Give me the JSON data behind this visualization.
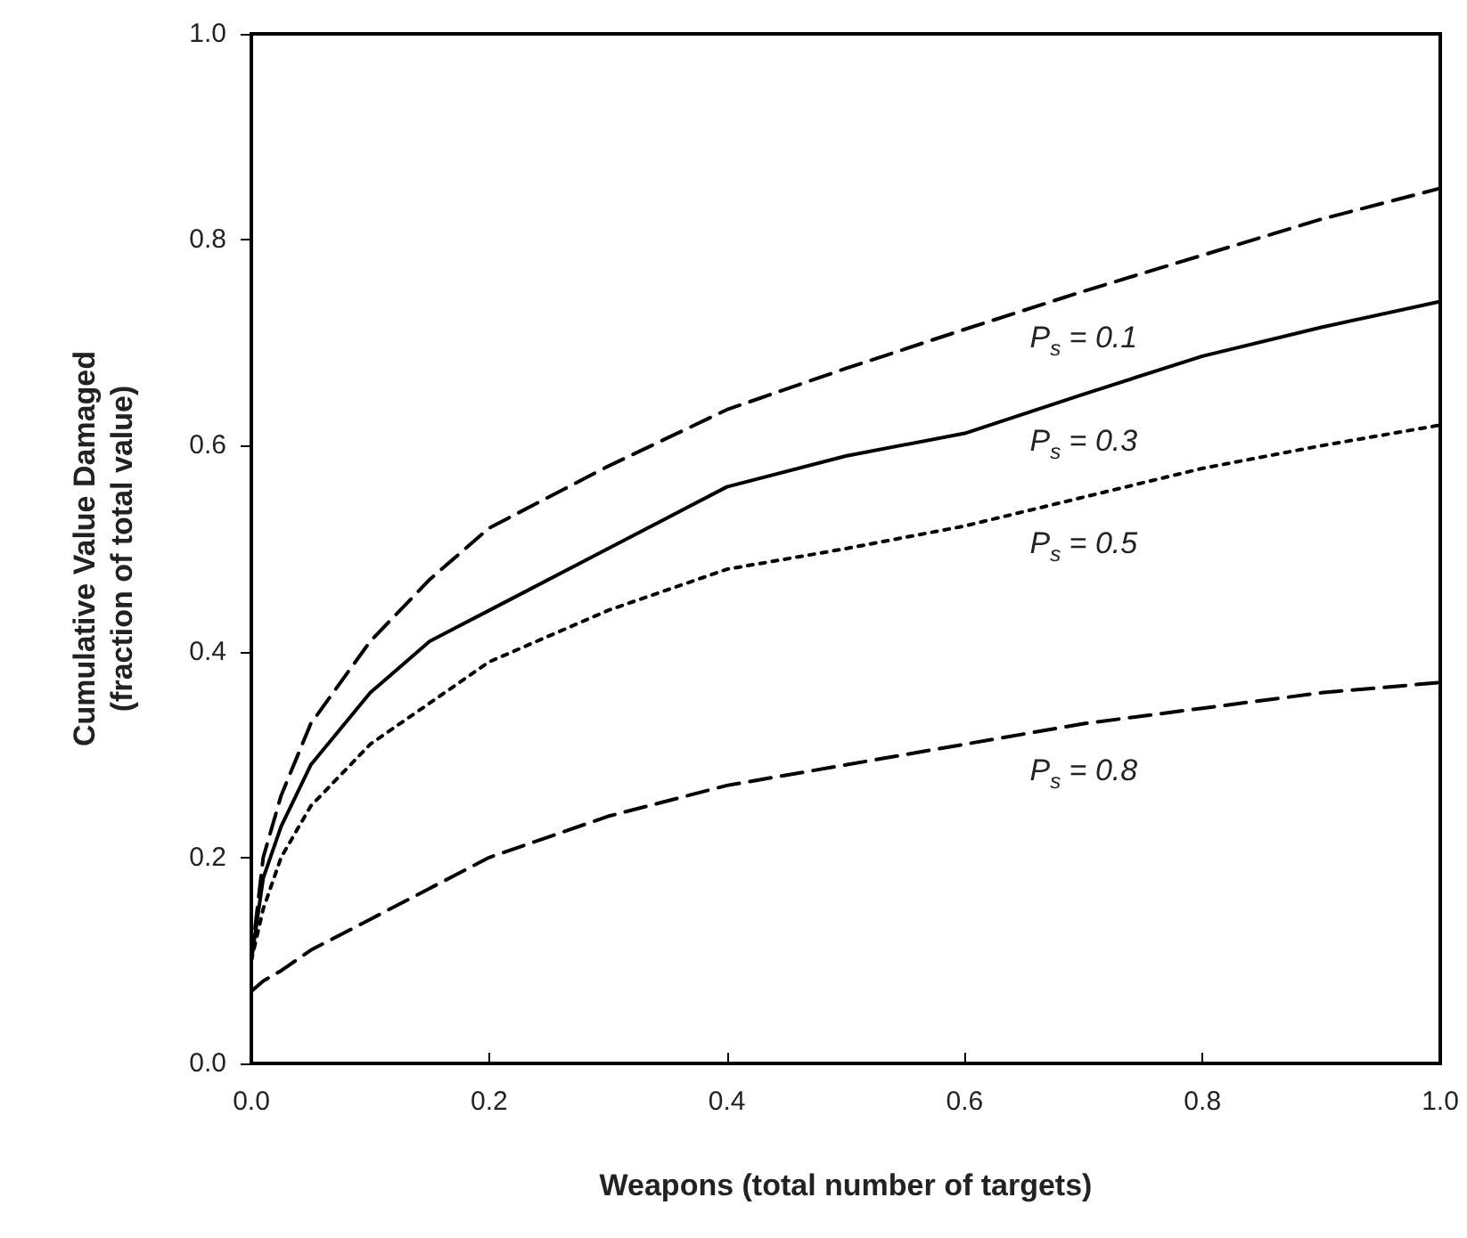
{
  "chart_data": {
    "type": "line",
    "xlabel": "Weapons (total number of targets)",
    "ylabel": "Cumulative Value Damaged\n(fraction of total value)",
    "x": [
      0,
      0.01,
      0.025,
      0.05,
      0.1,
      0.15,
      0.2,
      0.3,
      0.4,
      0.5,
      0.6,
      0.7,
      0.8,
      0.9,
      1.0
    ],
    "series": [
      {
        "name": "P$_{s}$ = 0.1",
        "color": "#000000",
        "line_style": "dashed",
        "values": [
          0.1,
          0.2,
          0.26,
          0.33,
          0.41,
          0.47,
          0.52,
          0.58,
          0.635,
          0.675,
          0.713,
          0.75,
          0.785,
          0.82,
          0.85
        ]
      },
      {
        "name": "P$_{s}$ = 0.3",
        "color": "#000000",
        "line_style": "solid",
        "values": [
          0.1,
          0.18,
          0.23,
          0.29,
          0.36,
          0.41,
          0.44,
          0.5,
          0.56,
          0.59,
          0.612,
          0.65,
          0.687,
          0.715,
          0.74
        ]
      },
      {
        "name": "P$_{s}$ = 0.5",
        "color": "#000000",
        "line_style": "dotted",
        "values": [
          0.1,
          0.15,
          0.2,
          0.25,
          0.31,
          0.35,
          0.39,
          0.44,
          0.48,
          0.5,
          0.522,
          0.55,
          0.578,
          0.6,
          0.62
        ]
      },
      {
        "name": "P$_{s}$ = 0.8",
        "color": "#000000",
        "line_style": "dashed",
        "values": [
          0.07,
          0.08,
          0.09,
          0.11,
          0.14,
          0.17,
          0.2,
          0.24,
          0.27,
          0.29,
          0.31,
          0.33,
          0.345,
          0.36,
          0.37
        ]
      }
    ],
    "xlim": [
      0,
      1
    ],
    "ylim": [
      0,
      1
    ],
    "xticks": [
      {
        "value": 0,
        "label": "0.0"
      },
      0.2,
      0.4,
      0.6,
      0.8,
      {
        "value": 1,
        "label": "1.0"
      }
    ],
    "yticks": [
      {
        "value": 0,
        "label": "0.0"
      },
      0.2,
      0.4,
      0.6,
      0.8,
      {
        "value": 1,
        "label": "1.0"
      }
    ],
    "grid": false,
    "legend": false,
    "marker": "none"
  }
}
